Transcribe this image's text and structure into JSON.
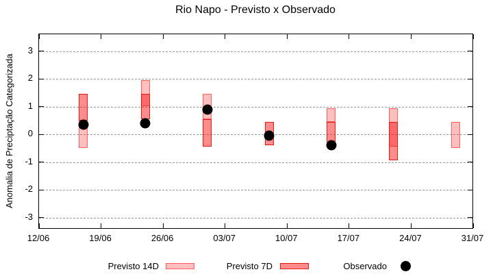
{
  "chart_data": {
    "type": "bar",
    "subtype": "range-bars-with-scatter-overlay",
    "title": "Rio Napo - Previsto x Observado",
    "xlabel": "",
    "ylabel": "Anomalia de Preciptação Categorizada",
    "ylim": [
      -3.4,
      3.6
    ],
    "yticks": [
      3,
      2,
      1,
      0,
      -1,
      -2,
      -3
    ],
    "xticks": [
      {
        "label": "12/06",
        "day": 0
      },
      {
        "label": "19/06",
        "day": 7
      },
      {
        "label": "26/06",
        "day": 14
      },
      {
        "label": "03/07",
        "day": 21
      },
      {
        "label": "10/07",
        "day": 28
      },
      {
        "label": "17/07",
        "day": 35
      },
      {
        "label": "24/07",
        "day": 42
      },
      {
        "label": "31/07",
        "day": 49
      }
    ],
    "x_axis_span_days": 49,
    "grid": "horizontal-dashed",
    "legend_position": "below-plot",
    "legend": [
      "Previsto 14D",
      "Previsto 7D",
      "Observado"
    ],
    "groups": [
      {
        "date": "17/06",
        "day": 5,
        "previsto14_range": [
          -0.5,
          0.5
        ],
        "previsto7_range": [
          0.5,
          1.45
        ],
        "observado": 0.35
      },
      {
        "date": "24/06",
        "day": 12,
        "previsto14_range": [
          1.0,
          1.95
        ],
        "previsto7_range": [
          0.55,
          1.45
        ],
        "observado": 0.4
      },
      {
        "date": "01/07",
        "day": 19,
        "previsto14_range": [
          0.55,
          1.45
        ],
        "previsto7_range": [
          -0.45,
          0.55
        ],
        "observado": 0.9
      },
      {
        "date": "08/07",
        "day": 26,
        "previsto14_range": null,
        "previsto7_range": [
          -0.4,
          0.45
        ],
        "observado": -0.05
      },
      {
        "date": "15/07",
        "day": 33,
        "previsto14_range": [
          0.45,
          0.95
        ],
        "previsto7_range": [
          -0.3,
          0.45
        ],
        "observado": -0.4
      },
      {
        "date": "22/07",
        "day": 40,
        "previsto14_range": [
          -0.45,
          0.95
        ],
        "previsto7_range": [
          -0.95,
          0.45
        ],
        "observado": null
      },
      {
        "date": "29/07",
        "day": 47,
        "previsto14_range": [
          -0.5,
          0.45
        ],
        "previsto7_range": null,
        "observado": null
      }
    ],
    "colors": {
      "previsto14_fill": "rgba(255,0,0,0.25)",
      "previsto14_border": "rgba(255,0,0,0.5)",
      "previsto7_fill": "rgba(255,0,0,0.45)",
      "previsto7_border": "#e51a13",
      "observado": "#000000",
      "grid": "#9b9b9b",
      "axis": "#000000",
      "background": "#ffffff"
    }
  }
}
